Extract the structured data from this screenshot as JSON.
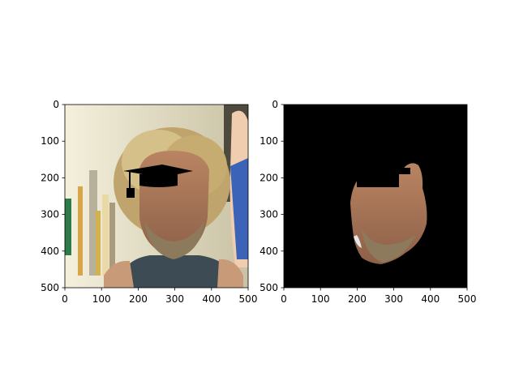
{
  "chart_data": [
    {
      "type": "image",
      "panel": "left",
      "content": "photo of a man with blond curly hair; graduation cap overlay",
      "xlim": [
        0,
        500
      ],
      "ylim": [
        500,
        0
      ],
      "xticks": [
        0,
        100,
        200,
        300,
        400,
        500
      ],
      "yticks": [
        0,
        100,
        200,
        300,
        400,
        500
      ],
      "title": "",
      "xlabel": "",
      "ylabel": ""
    },
    {
      "type": "image",
      "panel": "right",
      "content": "face segmentation mask on black background; black bar over the eyes",
      "xlim": [
        0,
        500
      ],
      "ylim": [
        500,
        0
      ],
      "xticks": [
        0,
        100,
        200,
        300,
        400,
        500
      ],
      "yticks": [
        0,
        100,
        200,
        300,
        400,
        500
      ],
      "title": "",
      "xlabel": "",
      "ylabel": ""
    }
  ],
  "colors": {
    "mask_background": "#000000",
    "axis": "#000000"
  }
}
